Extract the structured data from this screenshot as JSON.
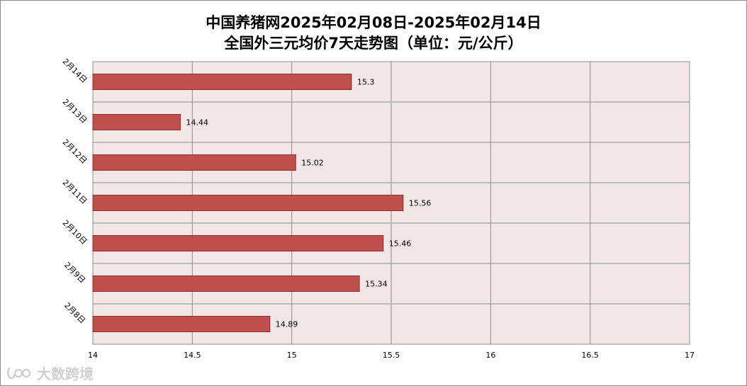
{
  "chart_data": {
    "type": "bar",
    "orientation": "horizontal",
    "title_line1": "中国养猪网2025年02月08日-2025年02月14日",
    "title_line2": "全国外三元均价7天走势图（单位：元/公斤）",
    "categories": [
      "2月14日",
      "2月13日",
      "2月12日",
      "2月11日",
      "2月10日",
      "2月9日",
      "2月8日"
    ],
    "series": [
      {
        "values": [
          15.3,
          14.44,
          15.02,
          15.56,
          15.46,
          15.34,
          14.89
        ]
      }
    ],
    "data_labels": [
      "15.3",
      "14.44",
      "15.02",
      "15.56",
      "15.46",
      "15.34",
      "14.89"
    ],
    "xlim": [
      14,
      17
    ],
    "xticks": [
      14,
      14.5,
      15,
      15.5,
      16,
      16.5,
      17
    ],
    "xtick_labels": [
      "14",
      "14.5",
      "15",
      "15.5",
      "16",
      "16.5",
      "17"
    ],
    "grid": true,
    "legend": "none",
    "colors": {
      "bar_fill": "#c0504d",
      "bar_stroke": "#8b2e2b",
      "plot_background": "#f2e6e6",
      "grid": "#8c8c8c"
    }
  },
  "watermark": {
    "text": "大数跨境"
  }
}
